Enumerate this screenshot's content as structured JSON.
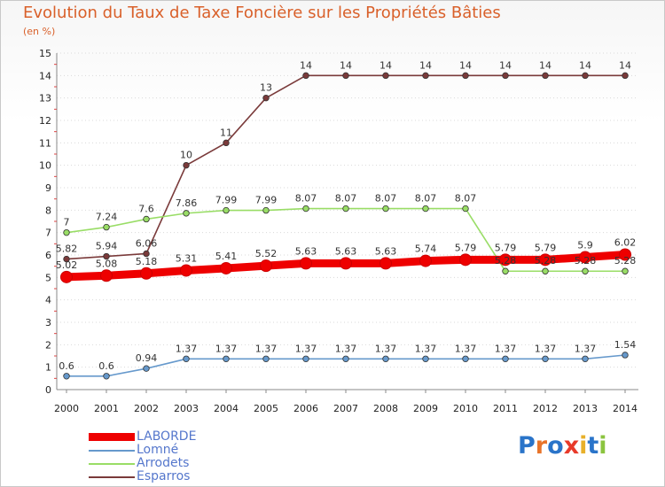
{
  "title": "Evolution du Taux de Taxe Foncière sur les Propriétés Bâties",
  "subtitle": "(en %)",
  "logo_text": "Proxiti",
  "chart_data": {
    "type": "line",
    "title": "Evolution du Taux de Taxe Foncière sur les Propriétés Bâties",
    "ylabel": "(en %)",
    "xlabel": "",
    "ylim": [
      0,
      15
    ],
    "yticks": [
      "0",
      "1",
      "2",
      "3",
      "4",
      "5",
      "6",
      "7",
      "8",
      "9",
      "10",
      "11",
      "12",
      "13",
      "14",
      "15"
    ],
    "categories": [
      "2000",
      "2001",
      "2002",
      "2003",
      "2004",
      "2005",
      "2006",
      "2007",
      "2008",
      "2009",
      "2010",
      "2011",
      "2012",
      "2013",
      "2014"
    ],
    "series": [
      {
        "name": "LABORDE",
        "color": "#ee0000",
        "values": [
          5.02,
          5.08,
          5.18,
          5.31,
          5.41,
          5.52,
          5.63,
          5.63,
          5.63,
          5.74,
          5.79,
          5.79,
          5.79,
          5.9,
          6.02
        ],
        "labels": [
          "5.02",
          "5.08",
          "5.18",
          "5.31",
          "5.41",
          "5.52",
          "5.63",
          "5.63",
          "5.63",
          "5.74",
          "5.79",
          "5.79",
          "5.79",
          "5.9",
          "6.02"
        ]
      },
      {
        "name": "Lomné",
        "color": "#6699cc",
        "values": [
          0.6,
          0.6,
          0.94,
          1.37,
          1.37,
          1.37,
          1.37,
          1.37,
          1.37,
          1.37,
          1.37,
          1.37,
          1.37,
          1.37,
          1.54
        ],
        "labels": [
          "0.6",
          "0.6",
          "0.94",
          "1.37",
          "1.37",
          "1.37",
          "1.37",
          "1.37",
          "1.37",
          "1.37",
          "1.37",
          "1.37",
          "1.37",
          "1.37",
          "1.54"
        ]
      },
      {
        "name": "Arrodets",
        "color": "#99dd66",
        "values": [
          7,
          7.24,
          7.6,
          7.86,
          7.99,
          7.99,
          8.07,
          8.07,
          8.07,
          8.07,
          8.07,
          5.28,
          5.28,
          5.28,
          5.28
        ],
        "labels": [
          "7",
          "7.24",
          "7.6",
          "7.86",
          "7.99",
          "7.99",
          "8.07",
          "8.07",
          "8.07",
          "8.07",
          "8.07",
          "5.28",
          "5.28",
          "5.28",
          "5.28"
        ]
      },
      {
        "name": "Esparros",
        "color": "#7a3a3a",
        "values": [
          5.82,
          5.94,
          6.06,
          10,
          11,
          13,
          14,
          14,
          14,
          14,
          14,
          14,
          14,
          14,
          14
        ],
        "labels": [
          "5.82",
          "5.94",
          "6.06",
          "10",
          "11",
          "13",
          "14",
          "14",
          "14",
          "14",
          "14",
          "14",
          "14",
          "14",
          "14"
        ]
      }
    ],
    "legend": [
      "LABORDE",
      "Lomné",
      "Arrodets",
      "Esparros"
    ],
    "legend_position": "bottom-left"
  }
}
